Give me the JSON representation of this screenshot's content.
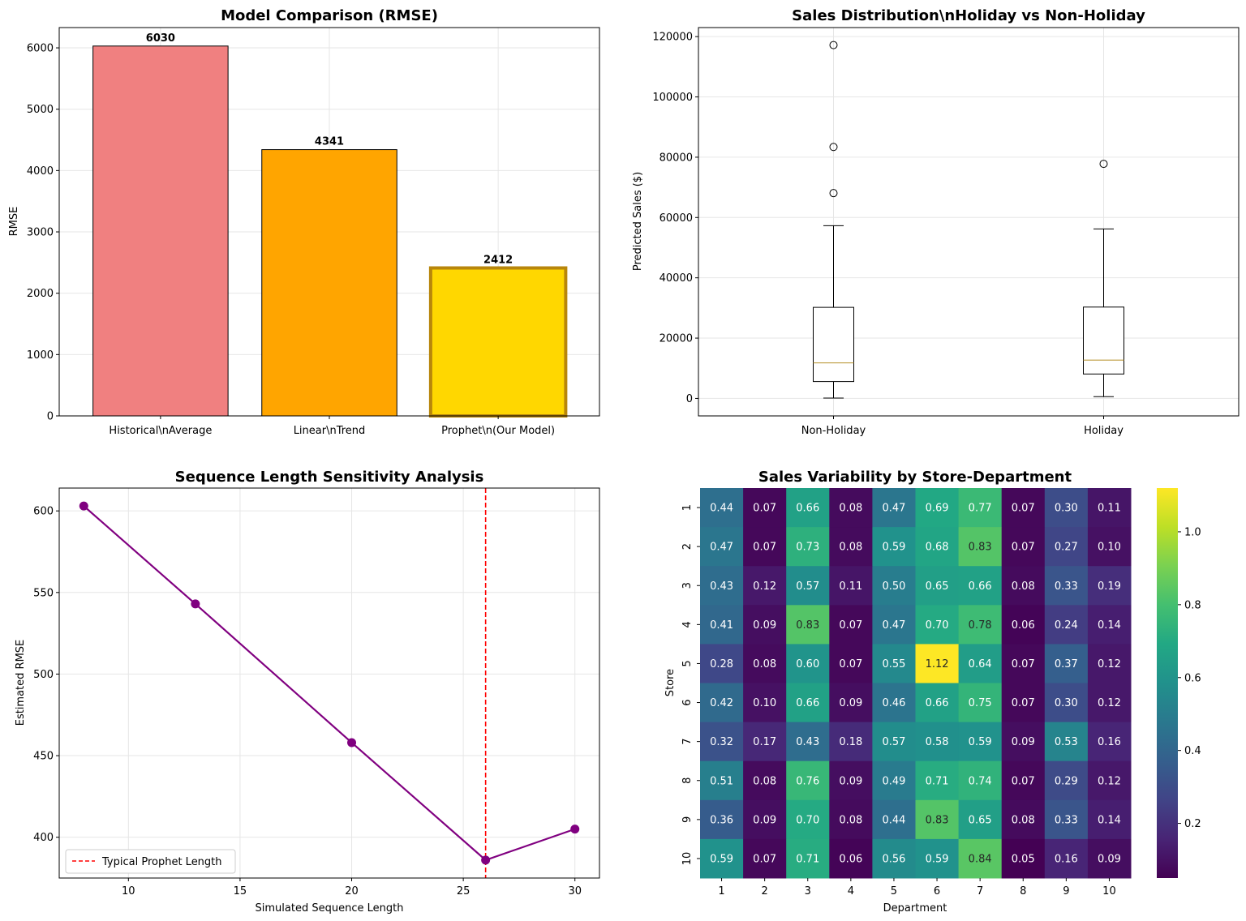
{
  "colors": {
    "bar_historical": "#f08080",
    "bar_linear": "#ffa500",
    "bar_prophet": "#ffd700",
    "bar_prophet_edge": "#b8860b",
    "line": "#800080",
    "vline": "#ff0000",
    "median": "#bd9c3f"
  },
  "chart_data": [
    {
      "type": "bar",
      "title": "Model Comparison (RMSE)",
      "categories": [
        "Historical\\nAverage",
        "Linear\\nTrend",
        "Prophet\\n(Our Model)"
      ],
      "values": [
        6030,
        4341,
        2412
      ],
      "data_labels": [
        "6030",
        "4341",
        "2412"
      ],
      "ylabel": "RMSE",
      "xlabel": "",
      "ylim": [
        0,
        6331
      ],
      "yticks": [
        0,
        1000,
        2000,
        3000,
        4000,
        5000,
        6000
      ],
      "grid": true
    },
    {
      "type": "box",
      "title": "Sales Distribution\\nHoliday vs Non-Holiday",
      "categories": [
        "Non-Holiday",
        "Holiday"
      ],
      "boxes": [
        {
          "min": 100,
          "q1": 5600,
          "median": 11800,
          "q3": 30200,
          "max": 57300,
          "outliers": [
            117200,
            83400,
            68100
          ]
        },
        {
          "min": 600,
          "q1": 8100,
          "median": 12700,
          "q3": 30300,
          "max": 56200,
          "outliers": [
            77800
          ]
        }
      ],
      "ylabel": "Predicted Sales ($)",
      "xlabel": "",
      "ylim": [
        -5800,
        123000
      ],
      "yticks": [
        0,
        20000,
        40000,
        60000,
        80000,
        100000,
        120000
      ],
      "grid": true
    },
    {
      "type": "line",
      "title": "Sequence Length Sensitivity Analysis",
      "x": [
        8,
        13,
        20,
        26,
        30
      ],
      "y": [
        603,
        543,
        458,
        386,
        405
      ],
      "xlabel": "Simulated Sequence Length",
      "ylabel": "Estimated RMSE",
      "xlim": [
        6.9,
        31.1
      ],
      "ylim": [
        375,
        614
      ],
      "xticks": [
        10,
        15,
        20,
        25,
        30
      ],
      "yticks": [
        400,
        450,
        500,
        550,
        600
      ],
      "reference_line": {
        "x": 26,
        "label": "Typical Prophet Length"
      },
      "legend_position": "lower-left",
      "grid": true
    },
    {
      "type": "heatmap",
      "title": "Sales Variability by Store-Department",
      "xlabel": "Department",
      "ylabel": "Store",
      "x_categories": [
        "1",
        "2",
        "3",
        "4",
        "5",
        "6",
        "7",
        "8",
        "9",
        "10"
      ],
      "y_categories": [
        "1",
        "2",
        "3",
        "4",
        "5",
        "6",
        "7",
        "8",
        "9",
        "10"
      ],
      "values": [
        [
          0.44,
          0.07,
          0.66,
          0.08,
          0.47,
          0.69,
          0.77,
          0.07,
          0.3,
          0.11
        ],
        [
          0.47,
          0.07,
          0.73,
          0.08,
          0.59,
          0.68,
          0.83,
          0.07,
          0.27,
          0.1
        ],
        [
          0.43,
          0.12,
          0.57,
          0.11,
          0.5,
          0.65,
          0.66,
          0.08,
          0.33,
          0.19
        ],
        [
          0.41,
          0.09,
          0.83,
          0.07,
          0.47,
          0.7,
          0.78,
          0.06,
          0.24,
          0.14
        ],
        [
          0.28,
          0.08,
          0.6,
          0.07,
          0.55,
          1.12,
          0.64,
          0.07,
          0.37,
          0.12
        ],
        [
          0.42,
          0.1,
          0.66,
          0.09,
          0.46,
          0.66,
          0.75,
          0.07,
          0.3,
          0.12
        ],
        [
          0.32,
          0.17,
          0.43,
          0.18,
          0.57,
          0.58,
          0.59,
          0.09,
          0.53,
          0.16
        ],
        [
          0.51,
          0.08,
          0.76,
          0.09,
          0.49,
          0.71,
          0.74,
          0.07,
          0.29,
          0.12
        ],
        [
          0.36,
          0.09,
          0.7,
          0.08,
          0.44,
          0.83,
          0.65,
          0.08,
          0.33,
          0.14
        ],
        [
          0.59,
          0.07,
          0.71,
          0.06,
          0.56,
          0.59,
          0.84,
          0.05,
          0.16,
          0.09
        ]
      ],
      "value_format": "2 decimals",
      "colormap": "viridis",
      "vmin": 0.05,
      "vmax": 1.12,
      "colorbar_ticks": [
        0.2,
        0.4,
        0.6,
        0.8,
        1.0
      ],
      "colorbar_labels": [
        "0.2",
        "0.4",
        "0.6",
        "0.8",
        "1.0"
      ]
    }
  ]
}
